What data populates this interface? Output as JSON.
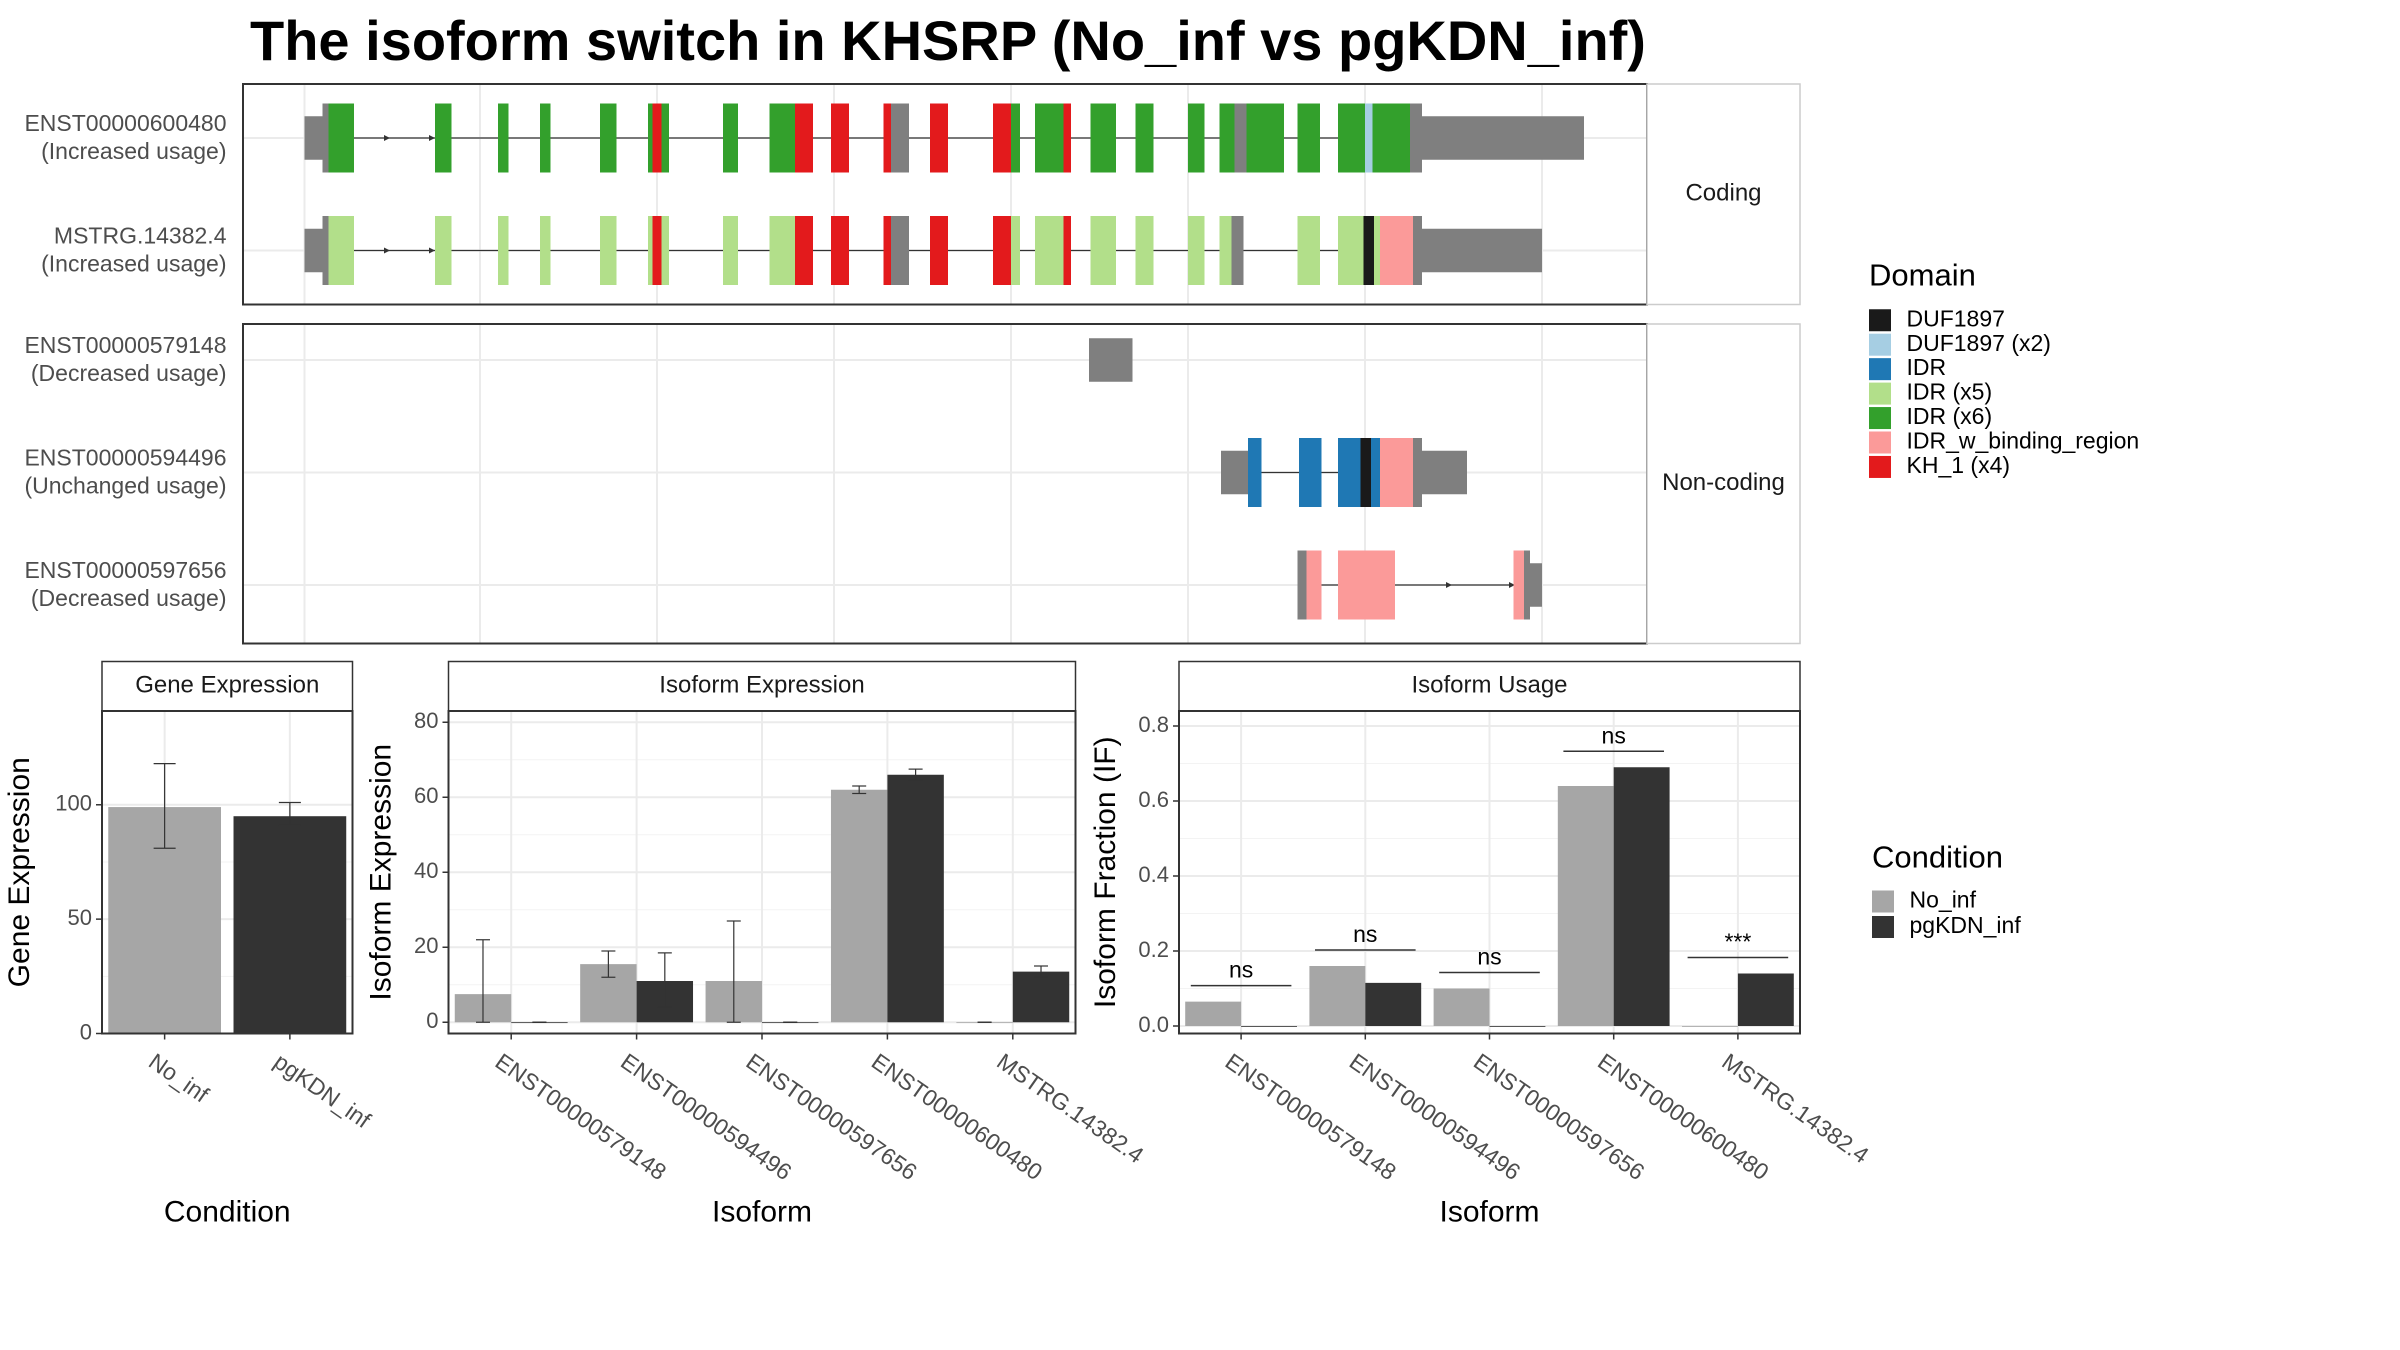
{
  "title": "The isoform switch in KHSRP (No_inf vs pgKDN_inf)",
  "colors": {
    "No_inf": "#a6a6a6",
    "pgKDN_inf": "#333333",
    "utr": "#7f7f7f",
    "DUF1897": "#1a1a1a",
    "DUF1897 (x2)": "#a6cee3",
    "IDR": "#1f78b4",
    "IDR (x5)": "#b2df8a",
    "IDR (x6)": "#33a02c",
    "IDR_w_binding_region": "#fb9a99",
    "KH_1 (x4)": "#e31a1c"
  },
  "structure": {
    "panels": [
      {
        "label": "Coding",
        "transcripts": [
          {
            "id": "ENST00000600480",
            "usage": "(Increased usage)",
            "line": [
              215,
              945
            ],
            "arrows": [
              260,
              290
            ],
            "blocks": [
              [
                203,
                215,
                "utr"
              ],
              [
                215,
                219,
                "utr"
              ],
              [
                219,
                236,
                "IDR (x6)"
              ],
              [
                290,
                301,
                "IDR (x6)"
              ],
              [
                332,
                339,
                "IDR (x6)"
              ],
              [
                360,
                367,
                "IDR (x6)"
              ],
              [
                400,
                411,
                "IDR (x6)"
              ],
              [
                432,
                435,
                "IDR (x6)"
              ],
              [
                435,
                441,
                "KH_1 (x4)"
              ],
              [
                441,
                446,
                "IDR (x6)"
              ],
              [
                482,
                492,
                "IDR (x6)"
              ],
              [
                513,
                530,
                "IDR (x6)"
              ],
              [
                530,
                542,
                "KH_1 (x4)"
              ],
              [
                554,
                566,
                "KH_1 (x4)"
              ],
              [
                589,
                594,
                "KH_1 (x4)"
              ],
              [
                594,
                606,
                "utr"
              ],
              [
                620,
                632,
                "KH_1 (x4)"
              ],
              [
                662,
                674,
                "KH_1 (x4)"
              ],
              [
                674,
                680,
                "IDR (x6)"
              ],
              [
                690,
                709,
                "IDR (x6)"
              ],
              [
                709,
                714,
                "KH_1 (x4)"
              ],
              [
                727,
                744,
                "IDR (x6)"
              ],
              [
                757,
                769,
                "IDR (x6)"
              ],
              [
                792,
                803,
                "IDR (x6)"
              ],
              [
                813,
                823,
                "IDR (x6)"
              ],
              [
                823,
                831,
                "utr"
              ],
              [
                831,
                856,
                "IDR (x6)"
              ],
              [
                865,
                880,
                "IDR (x6)"
              ],
              [
                892,
                910,
                "IDR (x6)"
              ],
              [
                910,
                915,
                "DUF1897 (x2)"
              ],
              [
                915,
                940,
                "IDR (x6)"
              ],
              [
                940,
                948,
                "utr"
              ],
              [
                948,
                1056,
                "utr",
                "thick"
              ]
            ]
          },
          {
            "id": "MSTRG.14382.4",
            "usage": "(Increased usage)",
            "line": [
              215,
              945
            ],
            "arrows": [
              260,
              290
            ],
            "blocks": [
              [
                203,
                215,
                "utr"
              ],
              [
                215,
                219,
                "utr"
              ],
              [
                219,
                236,
                "IDR (x5)"
              ],
              [
                290,
                301,
                "IDR (x5)"
              ],
              [
                332,
                339,
                "IDR (x5)"
              ],
              [
                360,
                367,
                "IDR (x5)"
              ],
              [
                400,
                411,
                "IDR (x5)"
              ],
              [
                432,
                435,
                "IDR (x5)"
              ],
              [
                435,
                441,
                "KH_1 (x4)"
              ],
              [
                441,
                446,
                "IDR (x5)"
              ],
              [
                482,
                492,
                "IDR (x5)"
              ],
              [
                513,
                530,
                "IDR (x5)"
              ],
              [
                530,
                542,
                "KH_1 (x4)"
              ],
              [
                554,
                566,
                "KH_1 (x4)"
              ],
              [
                589,
                594,
                "KH_1 (x4)"
              ],
              [
                594,
                606,
                "utr"
              ],
              [
                620,
                632,
                "KH_1 (x4)"
              ],
              [
                662,
                674,
                "KH_1 (x4)"
              ],
              [
                674,
                680,
                "IDR (x5)"
              ],
              [
                690,
                709,
                "IDR (x5)"
              ],
              [
                709,
                714,
                "KH_1 (x4)"
              ],
              [
                727,
                744,
                "IDR (x5)"
              ],
              [
                757,
                769,
                "IDR (x5)"
              ],
              [
                792,
                803,
                "IDR (x5)"
              ],
              [
                813,
                821,
                "IDR (x5)"
              ],
              [
                821,
                829,
                "utr"
              ],
              [
                865,
                880,
                "IDR (x5)"
              ],
              [
                892,
                909,
                "IDR (x5)"
              ],
              [
                909,
                916,
                "DUF1897"
              ],
              [
                916,
                920,
                "IDR (x5)"
              ],
              [
                920,
                942,
                "IDR_w_binding_region"
              ],
              [
                942,
                948,
                "utr"
              ],
              [
                948,
                1028,
                "utr",
                "thick"
              ]
            ]
          }
        ]
      },
      {
        "label": "Non-coding",
        "transcripts": [
          {
            "id": "ENST00000579148",
            "usage": "(Decreased usage)",
            "line": null,
            "arrows": [],
            "blocks": [
              [
                726,
                755,
                "utr"
              ]
            ]
          },
          {
            "id": "ENST00000594496",
            "usage": "(Unchanged usage)",
            "line": [
              833,
              948
            ],
            "arrows": [],
            "blocks": [
              [
                814,
                832,
                "utr"
              ],
              [
                832,
                841,
                "IDR"
              ],
              [
                866,
                881,
                "IDR"
              ],
              [
                892,
                907,
                "IDR"
              ],
              [
                907,
                914,
                "DUF1897"
              ],
              [
                914,
                920,
                "IDR"
              ],
              [
                920,
                942,
                "IDR_w_binding_region"
              ],
              [
                942,
                948,
                "utr"
              ],
              [
                948,
                978,
                "utr",
                "thick"
              ]
            ]
          },
          {
            "id": "ENST00000597656",
            "usage": "(Decreased usage)",
            "line": [
              880,
              1010
            ],
            "arrows": [
              968,
              1010
            ],
            "blocks": [
              [
                865,
                871,
                "utr"
              ],
              [
                871,
                881,
                "IDR_w_binding_region"
              ],
              [
                892,
                930,
                "IDR_w_binding_region"
              ],
              [
                1009,
                1016,
                "IDR_w_binding_region"
              ],
              [
                1016,
                1020,
                "utr"
              ],
              [
                1020,
                1028,
                "utr",
                "thin"
              ]
            ]
          }
        ]
      }
    ],
    "grid": [
      203,
      320,
      438,
      556,
      674,
      792,
      910,
      1028
    ]
  },
  "legend_domain": {
    "title": "Domain",
    "items": [
      "DUF1897",
      "DUF1897 (x2)",
      "IDR",
      "IDR (x5)",
      "IDR (x6)",
      "IDR_w_binding_region",
      "KH_1 (x4)"
    ]
  },
  "legend_condition": {
    "title": "Condition",
    "items": [
      "No_inf",
      "pgKDN_inf"
    ]
  },
  "chart_data": [
    {
      "type": "bar",
      "title": "Gene Expression",
      "xlabel": "Condition",
      "ylabel": "Gene Expression",
      "ylim": [
        0,
        141
      ],
      "yticks": [
        0,
        50,
        100
      ],
      "categories": [
        "No_inf",
        "pgKDN_inf"
      ],
      "values": [
        99,
        95
      ],
      "errors": [
        [
          81,
          118
        ],
        [
          91,
          101
        ]
      ]
    },
    {
      "type": "bar",
      "title": "Isoform Expression",
      "xlabel": "Isoform",
      "ylabel": "Isoform Expression",
      "ylim": [
        -3,
        83
      ],
      "yticks": [
        0,
        20,
        40,
        60,
        80
      ],
      "categories": [
        "ENST00000579148",
        "ENST00000594496",
        "ENST00000597656",
        "ENST00000600480",
        "MSTRG.14382.4"
      ],
      "series": [
        {
          "name": "No_inf",
          "values": [
            7.5,
            15.5,
            11,
            62,
            0
          ],
          "errors": [
            [
              0,
              22
            ],
            [
              12,
              19
            ],
            [
              0,
              27
            ],
            [
              61,
              63
            ],
            [
              0,
              0
            ]
          ]
        },
        {
          "name": "pgKDN_inf",
          "values": [
            0,
            11,
            0,
            66,
            13.5
          ],
          "errors": [
            [
              0,
              0
            ],
            [
              4,
              18.5
            ],
            [
              0,
              0
            ],
            [
              64.5,
              67.5
            ],
            [
              12,
              15
            ]
          ]
        }
      ]
    },
    {
      "type": "bar",
      "title": "Isoform Usage",
      "xlabel": "Isoform",
      "ylabel": "Isoform Fraction (IF)",
      "ylim": [
        -0.02,
        0.84
      ],
      "yticks": [
        "0.0",
        "0.2",
        "0.4",
        "0.6",
        "0.8"
      ],
      "categories": [
        "ENST00000579148",
        "ENST00000594496",
        "ENST00000597656",
        "ENST00000600480",
        "MSTRG.14382.4"
      ],
      "series": [
        {
          "name": "No_inf",
          "values": [
            0.065,
            0.16,
            0.1,
            0.64,
            0
          ]
        },
        {
          "name": "pgKDN_inf",
          "values": [
            0,
            0.115,
            0,
            0.69,
            0.14
          ]
        }
      ],
      "significance": [
        "ns",
        "ns",
        "ns",
        "ns",
        "***"
      ]
    }
  ]
}
